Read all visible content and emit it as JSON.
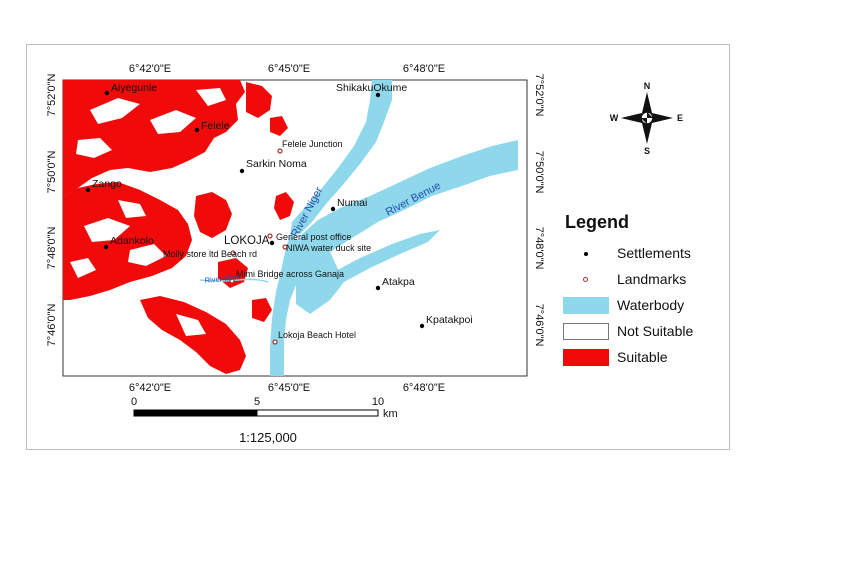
{
  "map": {
    "lon_labels": [
      "6°42'0\"E",
      "6°45'0\"E",
      "6°48'0\"E"
    ],
    "lat_labels": [
      "7°52'0\"N",
      "7°50'0\"N",
      "7°48'0\"N",
      "7°46'0\"N"
    ],
    "settlements": [
      {
        "name": "Aiyegunle"
      },
      {
        "name": "Felele"
      },
      {
        "name": "Sarkin Noma"
      },
      {
        "name": "Zango"
      },
      {
        "name": "Adankolo"
      },
      {
        "name": "LOKOJA"
      },
      {
        "name": "Numai"
      },
      {
        "name": "ShikakuOkume"
      },
      {
        "name": "Atakpa"
      },
      {
        "name": "Kpatakpoi"
      }
    ],
    "landmarks": [
      {
        "name": "Felele Junction"
      },
      {
        "name": "General post office"
      },
      {
        "name": "NIWA water duck site"
      },
      {
        "name": "Molly store ltd Beach rd"
      },
      {
        "name": "Mimi Bridge across Ganaja"
      },
      {
        "name": "Lokoja Beach Hotel"
      }
    ],
    "rivers": [
      "River Niger",
      "River Benue",
      "River Mimi"
    ],
    "north_arrow": {
      "n": "N",
      "s": "S",
      "e": "E",
      "w": "W"
    },
    "scale_bar": {
      "ticks": [
        "0",
        "5",
        "10"
      ],
      "unit": "km",
      "ratio": "1:125,000"
    }
  },
  "legend": {
    "title": "Legend",
    "items": [
      {
        "label": "Settlements"
      },
      {
        "label": "Landmarks"
      },
      {
        "label": "Waterbody"
      },
      {
        "label": "Not Suitable"
      },
      {
        "label": "Suitable"
      }
    ]
  },
  "colors": {
    "suitable": "#f10a0a",
    "waterbody": "#8fd8ec",
    "not_suitable": "#ffffff",
    "settlement": "#000000",
    "landmark": "#a33333",
    "river_label": "#1f4fae"
  }
}
